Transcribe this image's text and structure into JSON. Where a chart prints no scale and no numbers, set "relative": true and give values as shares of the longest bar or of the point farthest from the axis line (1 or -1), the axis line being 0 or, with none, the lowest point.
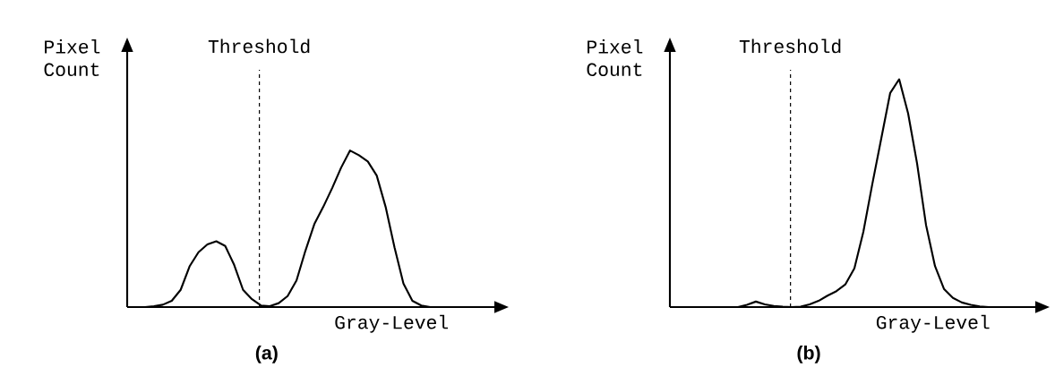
{
  "chart_data": [
    {
      "type": "line",
      "title": "(a)",
      "xlabel": "Gray-Level",
      "ylabel": "Pixel Count",
      "relative": true,
      "line_style": "solid",
      "categories": [
        null,
        null,
        null,
        null,
        null,
        null,
        null,
        null,
        null,
        null,
        null,
        null,
        null,
        null,
        null,
        null,
        null,
        null,
        null,
        null,
        null,
        null,
        null,
        null,
        null,
        null,
        null,
        null,
        null,
        null,
        null,
        null,
        null,
        null,
        null,
        null,
        null,
        null,
        null,
        null,
        null,
        null
      ],
      "series": [
        {
          "color": "#000000",
          "values": [
            0,
            0,
            0,
            0.006,
            0.015,
            0.04,
            0.11,
            0.26,
            0.35,
            0.4,
            0.42,
            0.39,
            0.27,
            0.11,
            0.05,
            0.01,
            0.006,
            0.025,
            0.07,
            0.17,
            0.36,
            0.53,
            0.64,
            0.76,
            0.89,
            1.0,
            0.97,
            0.93,
            0.84,
            0.64,
            0.38,
            0.15,
            0.04,
            0.01,
            0,
            0,
            0,
            0,
            0,
            0,
            0,
            0
          ]
        }
      ],
      "annotations": [
        "Threshold"
      ]
    },
    {
      "type": "line",
      "title": "(b)",
      "xlabel": "Gray-Level",
      "ylabel": "Pixel Count",
      "relative": true,
      "line_style": "solid",
      "categories": [
        null,
        null,
        null,
        null,
        null,
        null,
        null,
        null,
        null,
        null,
        null,
        null,
        null,
        null,
        null,
        null,
        null,
        null,
        null,
        null,
        null,
        null,
        null,
        null,
        null,
        null,
        null,
        null,
        null,
        null,
        null,
        null,
        null,
        null,
        null,
        null,
        null,
        null,
        null,
        null
      ],
      "series": [
        {
          "color": "#000000",
          "values": [
            0,
            0,
            0,
            0,
            0,
            0,
            0,
            0,
            0.01,
            0.024,
            0.012,
            0.005,
            0.002,
            0,
            0.002,
            0.012,
            0.027,
            0.05,
            0.07,
            0.1,
            0.17,
            0.33,
            0.54,
            0.74,
            0.94,
            1.0,
            0.85,
            0.63,
            0.36,
            0.18,
            0.08,
            0.04,
            0.02,
            0.01,
            0.003,
            0,
            0,
            0,
            0,
            0
          ]
        }
      ],
      "annotations": [
        "Threshold"
      ]
    }
  ]
}
